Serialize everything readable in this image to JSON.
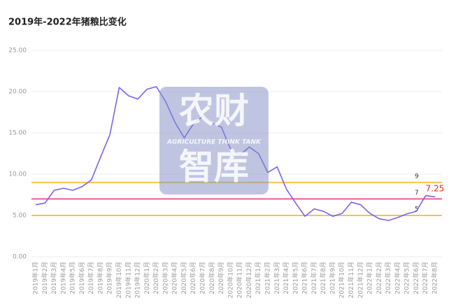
{
  "chart_data": {
    "type": "line",
    "title": "2019年-2022年猪粮比变化",
    "categories": [
      "2019年1月",
      "2019年2月",
      "2019年3月",
      "2019年4月",
      "2019年5月",
      "2019年6月",
      "2019年7月",
      "2019年8月",
      "2019年9月",
      "2019年10月",
      "2019年11月",
      "2019年12月",
      "2020年1月",
      "2020年2月",
      "2020年3月",
      "2020年4月",
      "2020年5月",
      "2020年6月",
      "2020年7月",
      "2020年8月",
      "2020年9月",
      "2020年10月",
      "2020年11月",
      "2020年12月",
      "2021年1月",
      "2021年2月",
      "2021年3月",
      "2021年4月",
      "2021年5月",
      "2021年6月",
      "2021年7月",
      "2021年8月",
      "2021年9月",
      "2021年10月",
      "2021年11月",
      "2021年12月",
      "2022年1月",
      "2022年2月",
      "2022年3月",
      "2022年4月",
      "2022年5月",
      "2022年6月",
      "2022年7月",
      "2022年8月"
    ],
    "series": [
      {
        "color": "#7b61f0",
        "values": [
          6.3,
          6.5,
          8.05,
          8.3,
          8.05,
          8.5,
          9.3,
          12.1,
          14.8,
          20.5,
          19.5,
          19.1,
          20.3,
          20.6,
          18.8,
          16.3,
          14.4,
          16.1,
          17.0,
          16.2,
          15.7,
          13.0,
          12.3,
          13.3,
          12.5,
          10.2,
          10.9,
          8.2,
          6.5,
          4.9,
          5.8,
          5.5,
          4.9,
          5.25,
          6.6,
          6.3,
          5.25,
          4.6,
          4.4,
          4.75,
          5.2,
          5.5,
          7.4,
          7.25
        ]
      }
    ],
    "ylim": [
      0,
      25
    ],
    "yticks": [
      {
        "value": 0,
        "label": "0.00"
      },
      {
        "value": 5,
        "label": "5.00"
      },
      {
        "value": 10,
        "label": "10.00"
      },
      {
        "value": 15,
        "label": "15.00"
      },
      {
        "value": 20,
        "label": "20.00"
      },
      {
        "value": 25,
        "label": "25.00"
      }
    ],
    "grid": true,
    "reference_lines": [
      {
        "value": 9,
        "color": "#f7c24e"
      },
      {
        "value": 7,
        "color": "#ee5a9a"
      },
      {
        "value": 5,
        "color": "#f7c24e"
      }
    ],
    "highlight": {
      "value": 7.25,
      "color": "#e8251b"
    },
    "watermark": {
      "title": "农财",
      "subtitle": "AGRICULTURE  THINK TANK",
      "bottom": "智库"
    }
  }
}
